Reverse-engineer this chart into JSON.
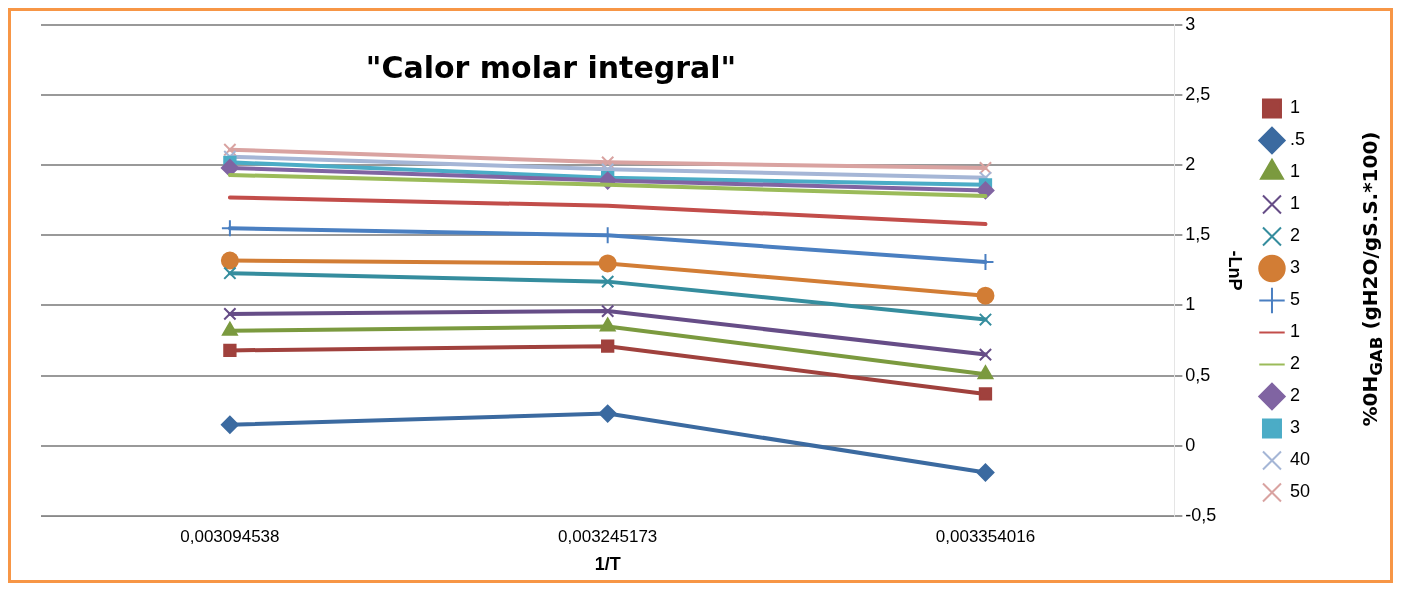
{
  "chart_data": {
    "type": "line",
    "title": "\"Calor molar integral\"",
    "xlabel": "1/T",
    "ylabel": "-LnP",
    "legend_title": "%0H$_{GAB}$ (gH2O/gS.S.*100)",
    "categories": [
      "0,003094538",
      "0,003245173",
      "0,003354016"
    ],
    "ylim": [
      -0.5,
      3
    ],
    "yticks": [
      {
        "value": -0.5,
        "label": "-0,5"
      },
      0,
      {
        "value": 0.5,
        "label": "0,5"
      },
      1,
      {
        "value": 1.5,
        "label": "1,5"
      },
      2,
      {
        "value": 2.5,
        "label": "2,5"
      },
      3
    ],
    "grid": "y",
    "legend": "right",
    "series": [
      {
        "name": "1",
        "color": "#a0413d",
        "marker": "square",
        "values": [
          0.68,
          0.71,
          0.37
        ]
      },
      {
        "name": ".5",
        "color": "#3b6aa0",
        "marker": "diamond",
        "values": [
          0.15,
          0.23,
          -0.19
        ]
      },
      {
        "name": "1",
        "color": "#7b9a3f",
        "marker": "triangle",
        "values": [
          0.82,
          0.85,
          0.51
        ]
      },
      {
        "name": "1",
        "color": "#664d87",
        "marker": "cross",
        "values": [
          0.94,
          0.96,
          0.65
        ]
      },
      {
        "name": "2",
        "color": "#358d9e",
        "marker": "cross",
        "values": [
          1.23,
          1.17,
          0.9
        ]
      },
      {
        "name": "3",
        "color": "#d27d35",
        "marker": "circle",
        "values": [
          1.32,
          1.3,
          1.07
        ]
      },
      {
        "name": "5",
        "color": "#4a7fc1",
        "marker": "plus",
        "values": [
          1.55,
          1.5,
          1.31
        ]
      },
      {
        "name": "1",
        "color": "#c24d4a",
        "marker": "none",
        "values": [
          1.77,
          1.71,
          1.58
        ]
      },
      {
        "name": "2",
        "color": "#9bbb59",
        "marker": "none",
        "values": [
          1.93,
          1.86,
          1.78
        ]
      },
      {
        "name": "2",
        "color": "#8064a2",
        "marker": "diamond",
        "values": [
          1.98,
          1.89,
          1.82
        ]
      },
      {
        "name": "3",
        "color": "#4bacc6",
        "marker": "square",
        "values": [
          2.02,
          1.91,
          1.86
        ]
      },
      {
        "name": "40",
        "color": "#a5b6d6",
        "marker": "cross",
        "values": [
          2.06,
          1.97,
          1.91
        ]
      },
      {
        "name": "50",
        "color": "#d9a3a1",
        "marker": "cross",
        "values": [
          2.11,
          2.02,
          1.98
        ]
      }
    ]
  }
}
